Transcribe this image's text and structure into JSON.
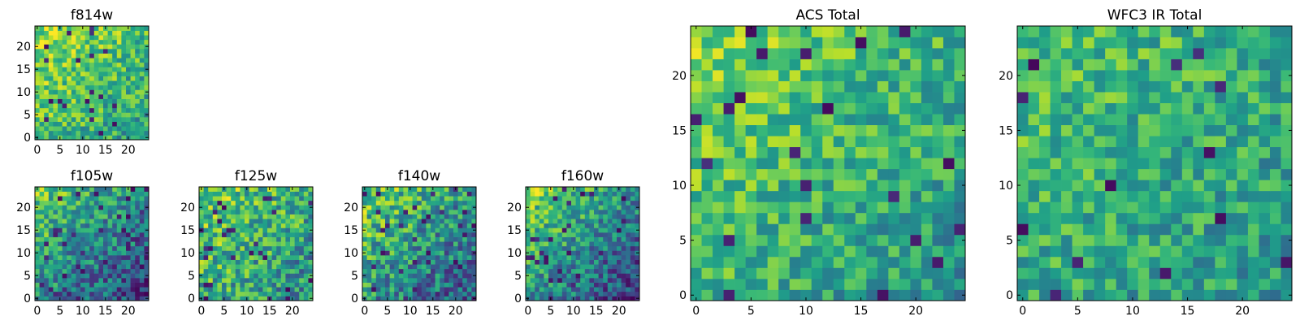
{
  "chart_data": [
    {
      "type": "heatmap",
      "title": "f814w",
      "grid": [
        25,
        25
      ],
      "xticks": [
        0,
        5,
        10,
        15,
        20
      ],
      "yticks": [
        0,
        5,
        10,
        15,
        20
      ],
      "xlim": [
        -0.5,
        24.5
      ],
      "ylim": [
        -0.5,
        24.5
      ],
      "colormap": "viridis",
      "seed": 11,
      "bright_region": "upper-left",
      "gradient": 0.3,
      "base": 0.7,
      "spread": 0.45,
      "dark_fraction": 0.035
    },
    {
      "type": "heatmap",
      "title": "f105w",
      "grid": [
        25,
        25
      ],
      "xticks": [
        0,
        5,
        10,
        15,
        20
      ],
      "yticks": [
        0,
        5,
        10,
        15,
        20
      ],
      "xlim": [
        -0.5,
        24.5
      ],
      "ylim": [
        -0.5,
        24.5
      ],
      "colormap": "viridis",
      "seed": 23,
      "bright_region": "upper-left",
      "gradient": 0.55,
      "base": 0.48,
      "spread": 0.5,
      "dark_fraction": 0.06
    },
    {
      "type": "heatmap",
      "title": "f125w",
      "grid": [
        25,
        25
      ],
      "xticks": [
        0,
        5,
        10,
        15,
        20
      ],
      "yticks": [
        0,
        5,
        10,
        15,
        20
      ],
      "xlim": [
        -0.5,
        24.5
      ],
      "ylim": [
        -0.5,
        24.5
      ],
      "colormap": "viridis",
      "seed": 37,
      "bright_region": "upper-left",
      "gradient": 0.3,
      "base": 0.62,
      "spread": 0.55,
      "dark_fraction": 0.05
    },
    {
      "type": "heatmap",
      "title": "f140w",
      "grid": [
        25,
        25
      ],
      "xticks": [
        0,
        5,
        10,
        15,
        20
      ],
      "yticks": [
        0,
        5,
        10,
        15,
        20
      ],
      "xlim": [
        -0.5,
        24.5
      ],
      "ylim": [
        -0.5,
        24.5
      ],
      "colormap": "viridis",
      "seed": 41,
      "bright_region": "upper-left",
      "gradient": 0.5,
      "base": 0.52,
      "spread": 0.55,
      "dark_fraction": 0.07
    },
    {
      "type": "heatmap",
      "title": "f160w",
      "grid": [
        25,
        25
      ],
      "xticks": [
        0,
        5,
        10,
        15,
        20
      ],
      "yticks": [
        0,
        5,
        10,
        15,
        20
      ],
      "xlim": [
        -0.5,
        24.5
      ],
      "ylim": [
        -0.5,
        24.5
      ],
      "colormap": "viridis",
      "seed": 53,
      "bright_region": "upper-left",
      "gradient": 0.6,
      "base": 0.5,
      "spread": 0.5,
      "dark_fraction": 0.06
    },
    {
      "type": "heatmap",
      "title": "ACS Total",
      "grid": [
        25,
        25
      ],
      "xticks": [
        0,
        5,
        10,
        15,
        20
      ],
      "yticks": [
        0,
        5,
        10,
        15,
        20
      ],
      "xlim": [
        -0.5,
        24.5
      ],
      "ylim": [
        -0.5,
        24.5
      ],
      "colormap": "viridis",
      "seed": 67,
      "bright_region": "upper-left",
      "gradient": 0.3,
      "base": 0.66,
      "spread": 0.4,
      "dark_fraction": 0.025
    },
    {
      "type": "heatmap",
      "title": "WFC3 IR Total",
      "grid": [
        25,
        25
      ],
      "xticks": [
        0,
        5,
        10,
        15,
        20
      ],
      "yticks": [
        0,
        5,
        10,
        15,
        20
      ],
      "xlim": [
        -0.5,
        24.5
      ],
      "ylim": [
        -0.5,
        24.5
      ],
      "colormap": "viridis",
      "seed": 79,
      "bright_region": "upper-left",
      "gradient": 0.18,
      "base": 0.62,
      "spread": 0.4,
      "dark_fraction": 0.025
    }
  ]
}
